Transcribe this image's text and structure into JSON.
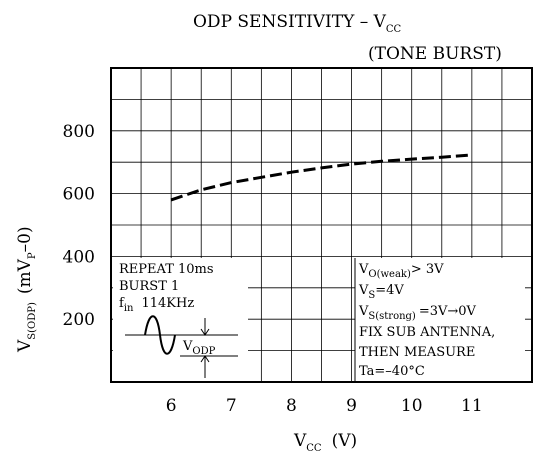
{
  "chart_data": {
    "type": "line",
    "title": "ODP SENSITIVITY – V",
    "title_sub": "CC",
    "subtitle": "(TONE BURST)",
    "xlabel": {
      "main": "V",
      "sub": "CC",
      "unit": "(V)"
    },
    "ylabel": {
      "main": "V",
      "sub": "S(ODP)",
      "unit_pre": "(mV",
      "unit_sub": "P",
      "unit_post": "–0)"
    },
    "x_ticks": [
      "6",
      "7",
      "8",
      "9",
      "10",
      "11"
    ],
    "y_ticks": [
      "200",
      "400",
      "600",
      "800"
    ],
    "xlim": [
      5,
      12
    ],
    "ylim": [
      0,
      1000
    ],
    "grid": true,
    "series": [
      {
        "x": [
          6.0,
          6.5,
          7.0,
          7.5,
          8.0,
          8.5,
          9.0,
          9.5,
          10.0,
          10.5,
          11.0
        ],
        "y": [
          580,
          612,
          635,
          652,
          668,
          682,
          694,
          703,
          710,
          716,
          723
        ]
      }
    ],
    "annotations": {
      "left_box": {
        "line1": "REPEAT 10ms",
        "line2": "BURST 1",
        "fin_main": "f",
        "fin_sub": "in",
        "fin_value": "114KHz",
        "vodp_main": "V",
        "vodp_sub": "ODP"
      },
      "right_box": {
        "l1_main": "V",
        "l1_sub": "O(weak)",
        "l1_post": "> 3V",
        "l2_main": "V",
        "l2_sub": "S",
        "l2_post": "=4V",
        "l3_main": "V",
        "l3_sub": "S(strong)",
        "l3_post": "=3V→0V",
        "l4": "FIX SUB ANTENNA,",
        "l5": "THEN MEASURE",
        "l6": "Ta=–40°C"
      }
    }
  }
}
